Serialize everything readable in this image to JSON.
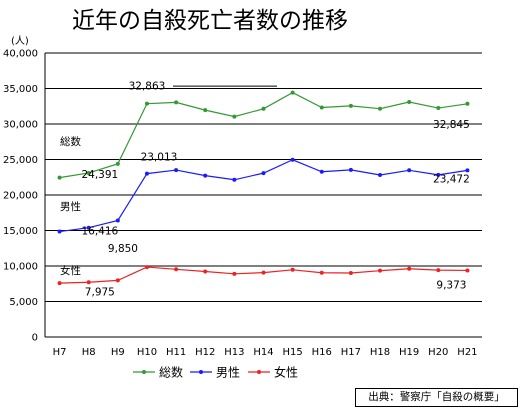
{
  "chart_data": {
    "type": "line",
    "title": "近年の自殺死亡者数の推移",
    "unit_label": "(人)",
    "ylim": [
      0,
      40000
    ],
    "ytick_step": 5000,
    "y_tick_labels": [
      "0",
      "5,000",
      "10,000",
      "15,000",
      "20,000",
      "25,000",
      "30,000",
      "35,000",
      "40,000"
    ],
    "grid": true,
    "legend_position": "bottom",
    "categories": [
      "H7",
      "H8",
      "H9",
      "H10",
      "H11",
      "H12",
      "H13",
      "H14",
      "H15",
      "H16",
      "H17",
      "H18",
      "H19",
      "H20",
      "H21"
    ],
    "series": [
      {
        "name": "総数",
        "color": "#339933",
        "values": [
          22445,
          23104,
          24391,
          32863,
          33048,
          31957,
          31042,
          32143,
          34427,
          32325,
          32552,
          32155,
          33093,
          32249,
          32845
        ],
        "side_label": "総数",
        "labels": [
          {
            "index": 2,
            "text": "24,391"
          },
          {
            "index": 3,
            "text": "32,863"
          },
          {
            "index": 14,
            "text": "32,845"
          }
        ]
      },
      {
        "name": "男性",
        "color": "#1a1aff",
        "values": [
          14853,
          15393,
          16416,
          23013,
          23512,
          22727,
          22144,
          23080,
          24963,
          23272,
          23540,
          22813,
          23478,
          22831,
          23472
        ],
        "side_label": "男性",
        "labels": [
          {
            "index": 2,
            "text": "16,416"
          },
          {
            "index": 3,
            "text": "23,013"
          },
          {
            "index": 14,
            "text": "23,472"
          }
        ]
      },
      {
        "name": "女性",
        "color": "#ee2222",
        "values": [
          7592,
          7711,
          7975,
          9850,
          9536,
          9230,
          8898,
          9063,
          9464,
          9053,
          9012,
          9342,
          9615,
          9418,
          9373
        ],
        "side_label": "女性",
        "labels": [
          {
            "index": 2,
            "text": "7,975"
          },
          {
            "index": 3,
            "text": "9,850"
          },
          {
            "index": 14,
            "text": "9,373"
          }
        ]
      }
    ]
  },
  "source_note": "出典：警察庁「自殺の概要」"
}
